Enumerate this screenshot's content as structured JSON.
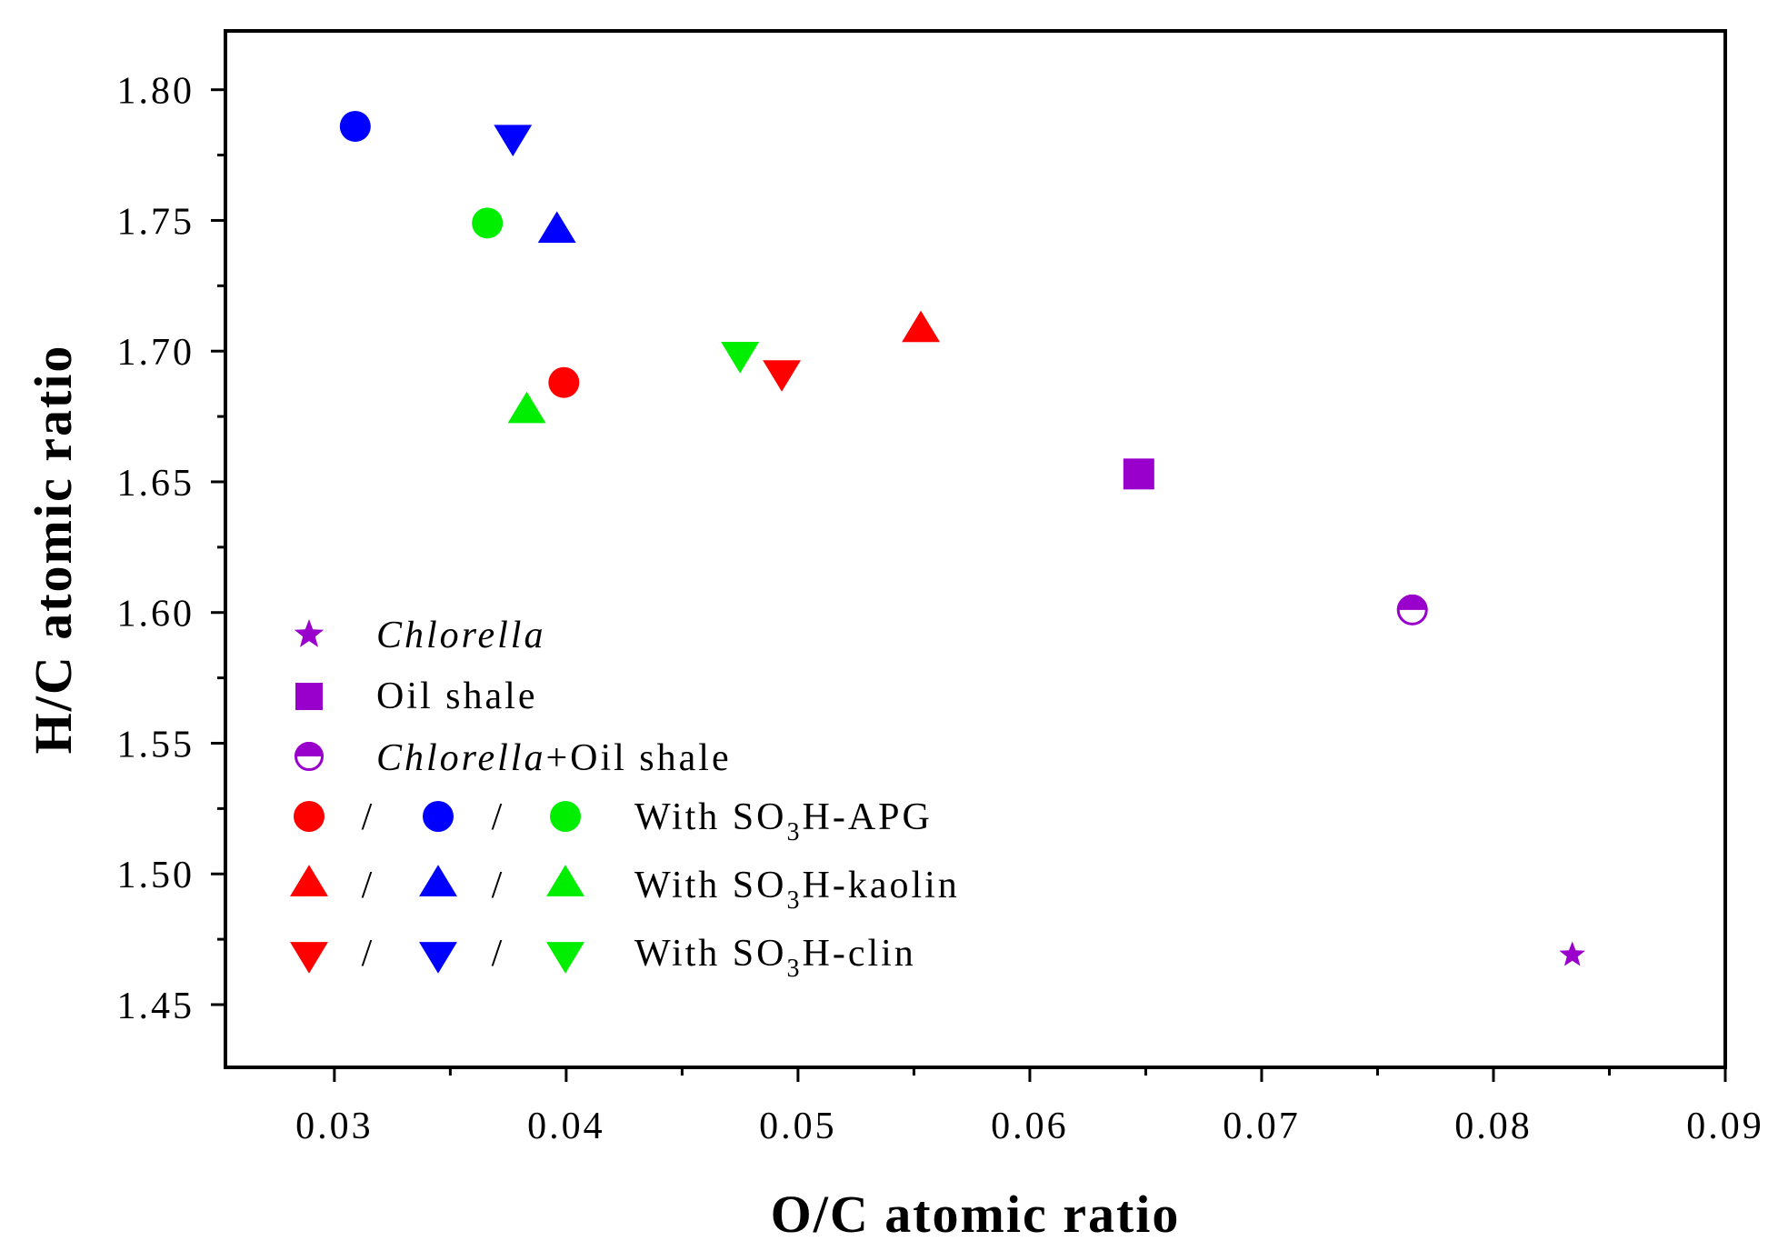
{
  "chart_data": {
    "type": "scatter",
    "title": "",
    "xlabel": "O/C atomic ratio",
    "ylabel": "H/C atomic ratio",
    "xlim": [
      0.0253,
      0.09
    ],
    "ylim": [
      1.426,
      1.8225
    ],
    "x_ticks": [
      "0.03",
      "0.04",
      "0.05",
      "0.06",
      "0.07",
      "0.08",
      "0.09"
    ],
    "x_tick_values": [
      0.03,
      0.04,
      0.05,
      0.06,
      0.07,
      0.08,
      0.09
    ],
    "y_ticks": [
      "1.45",
      "1.50",
      "1.55",
      "1.60",
      "1.65",
      "1.70",
      "1.75",
      "1.80"
    ],
    "y_tick_values": [
      1.45,
      1.5,
      1.55,
      1.6,
      1.65,
      1.7,
      1.75,
      1.8
    ],
    "grid": false,
    "legend_position": "bottom-left",
    "colors": {
      "purple": "#9900cc",
      "red": "#ff0000",
      "blue": "#0000ff",
      "green": "#00ee00"
    },
    "series": [
      {
        "name": "Chlorella",
        "marker": "star",
        "color": "purple",
        "points": [
          {
            "x": 0.0834,
            "y": 1.469
          }
        ]
      },
      {
        "name": "Oil shale",
        "marker": "square",
        "color": "purple",
        "points": [
          {
            "x": 0.0647,
            "y": 1.653
          }
        ]
      },
      {
        "name": "Chlorella+Oil shale",
        "marker": "half-circle",
        "color": "purple",
        "points": [
          {
            "x": 0.0765,
            "y": 1.601
          }
        ]
      },
      {
        "name": "With SO3H-APG (red)",
        "marker": "circle",
        "color": "red",
        "points": [
          {
            "x": 0.0399,
            "y": 1.688
          }
        ]
      },
      {
        "name": "With SO3H-APG (blue)",
        "marker": "circle",
        "color": "blue",
        "points": [
          {
            "x": 0.0309,
            "y": 1.786
          }
        ]
      },
      {
        "name": "With SO3H-APG (green)",
        "marker": "circle",
        "color": "green",
        "points": [
          {
            "x": 0.0366,
            "y": 1.749
          }
        ]
      },
      {
        "name": "With SO3H-kaolin (red)",
        "marker": "triangle-up",
        "color": "red",
        "points": [
          {
            "x": 0.0553,
            "y": 1.709
          }
        ]
      },
      {
        "name": "With SO3H-kaolin (blue)",
        "marker": "triangle-up",
        "color": "blue",
        "points": [
          {
            "x": 0.0396,
            "y": 1.747
          }
        ]
      },
      {
        "name": "With SO3H-kaolin (green)",
        "marker": "triangle-up",
        "color": "green",
        "points": [
          {
            "x": 0.0383,
            "y": 1.678
          }
        ]
      },
      {
        "name": "With SO3H-clin (red)",
        "marker": "triangle-down",
        "color": "red",
        "points": [
          {
            "x": 0.0493,
            "y": 1.691
          }
        ]
      },
      {
        "name": "With SO3H-clin (blue)",
        "marker": "triangle-down",
        "color": "blue",
        "points": [
          {
            "x": 0.0377,
            "y": 1.781
          }
        ]
      },
      {
        "name": "With SO3H-clin (green)",
        "marker": "triangle-down",
        "color": "green",
        "points": [
          {
            "x": 0.0475,
            "y": 1.698
          }
        ]
      }
    ],
    "legend": {
      "chlorella": "Chlorella",
      "oil_shale": "Oil shale",
      "mix_chlorella": "Chlorella",
      "mix_rest": "+Oil shale",
      "separator": "/",
      "with_prefix": "With SO",
      "subscript": "3",
      "apg_suffix": "H-APG",
      "kaolin_suffix": "H-kaolin",
      "clin_suffix": "H-clin"
    }
  }
}
